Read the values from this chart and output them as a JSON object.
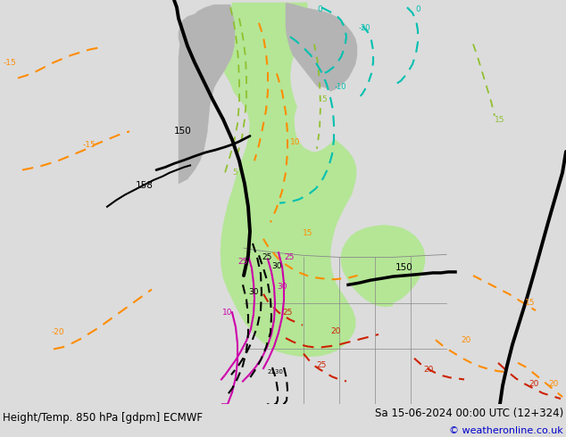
{
  "title_left": "Height/Temp. 850 hPa [gdpm] ECMWF",
  "title_right": "Sa 15-06-2024 00:00 UTC (12+324)",
  "copyright": "© weatheronline.co.uk",
  "fig_width": 6.34,
  "fig_height": 4.9,
  "dpi": 100,
  "bg_color": "#dcdcdc",
  "ocean_color": "#dcdcdc",
  "land_gray_color": "#b4b4b4",
  "land_green_color": "#b4e696",
  "bottom_bar_color": "#e8e8e8",
  "bottom_text_color": "#000000",
  "copyright_color": "#0000cc"
}
